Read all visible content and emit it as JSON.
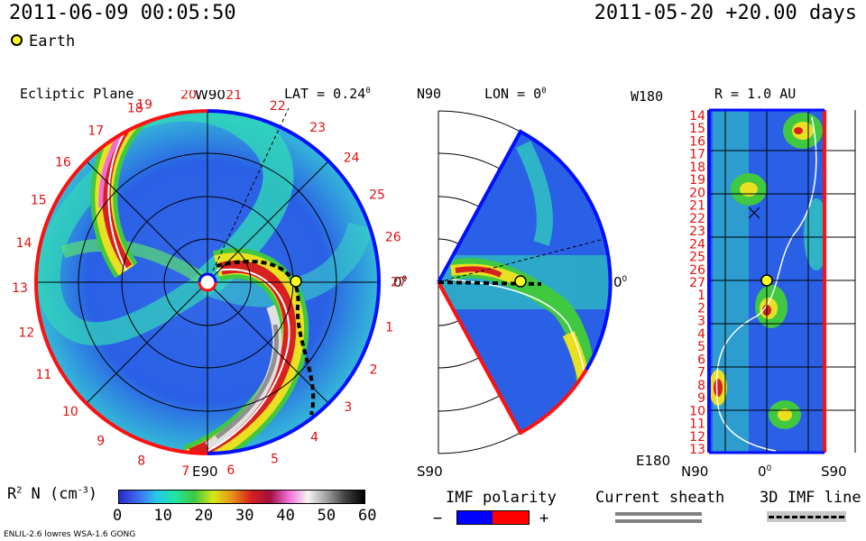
{
  "header": {
    "timestamp": "2011-06-09 00:05:50",
    "reference": "2011-05-20 +20.00 days",
    "legend_earth": "Earth"
  },
  "panels": {
    "ecliptic": {
      "title": "Ecliptic Plane",
      "lat": "LAT = 0.24",
      "deg": "0",
      "top_label": "W90",
      "bottom_label": "E90",
      "right_label": "0",
      "right_deg": "0",
      "rotation_labels": [
        "19",
        "20",
        "21",
        "22",
        "23",
        "24",
        "25",
        "26",
        "27",
        "1",
        "2",
        "3",
        "4",
        "5",
        "6",
        "7",
        "8",
        "9",
        "10",
        "11",
        "12",
        "13",
        "14",
        "15",
        "16",
        "17",
        "18"
      ]
    },
    "meridional": {
      "top_label": "N90",
      "bottom_label": "S90",
      "lon": "LON = 0",
      "deg": "0",
      "right_label": "0",
      "right_deg": "0"
    },
    "radial": {
      "title": "R = 1.0 AU",
      "top_left": "W180",
      "bottom_left": "E180",
      "x_left": "N90",
      "x_mid": "0",
      "x_mid_deg": "0",
      "x_right": "S90",
      "rotation_labels": [
        "14",
        "15",
        "16",
        "17",
        "18",
        "19",
        "20",
        "21",
        "22",
        "23",
        "24",
        "25",
        "26",
        "27",
        "1",
        "2",
        "3",
        "4",
        "5",
        "6",
        "7",
        "8",
        "9",
        "10",
        "11",
        "12",
        "13"
      ]
    }
  },
  "chart_data": {
    "type": "heatmap",
    "colorbar": {
      "label_main": "R",
      "label_sup": "2",
      "label_rest": " N (cm",
      "label_exp": "-3",
      "label_end": ")",
      "ticks": [
        "0",
        "10",
        "20",
        "30",
        "40",
        "50",
        "60"
      ],
      "range": [
        0,
        60
      ],
      "colors": [
        "#2a28c8",
        "#3c6cf0",
        "#28c8e8",
        "#20e6a0",
        "#40c840",
        "#d8e818",
        "#e89018",
        "#d82020",
        "#a01040",
        "#f070d8",
        "#f4f4f4",
        "#a0a0a0",
        "#404040",
        "#000000"
      ]
    },
    "earth_position": {
      "longitude_deg": 0,
      "radius_au": 1.0
    }
  },
  "legends": {
    "imf_polarity": "IMF polarity",
    "imf_minus": "−",
    "imf_plus": "+",
    "imf_colors": [
      "#0000ff",
      "#ff0000"
    ],
    "current_sheath": "Current sheath",
    "imf_line": "3D IMF line"
  },
  "footer": {
    "model": "ENLIL-2.6 lowres WSA-1.6 GONG"
  }
}
